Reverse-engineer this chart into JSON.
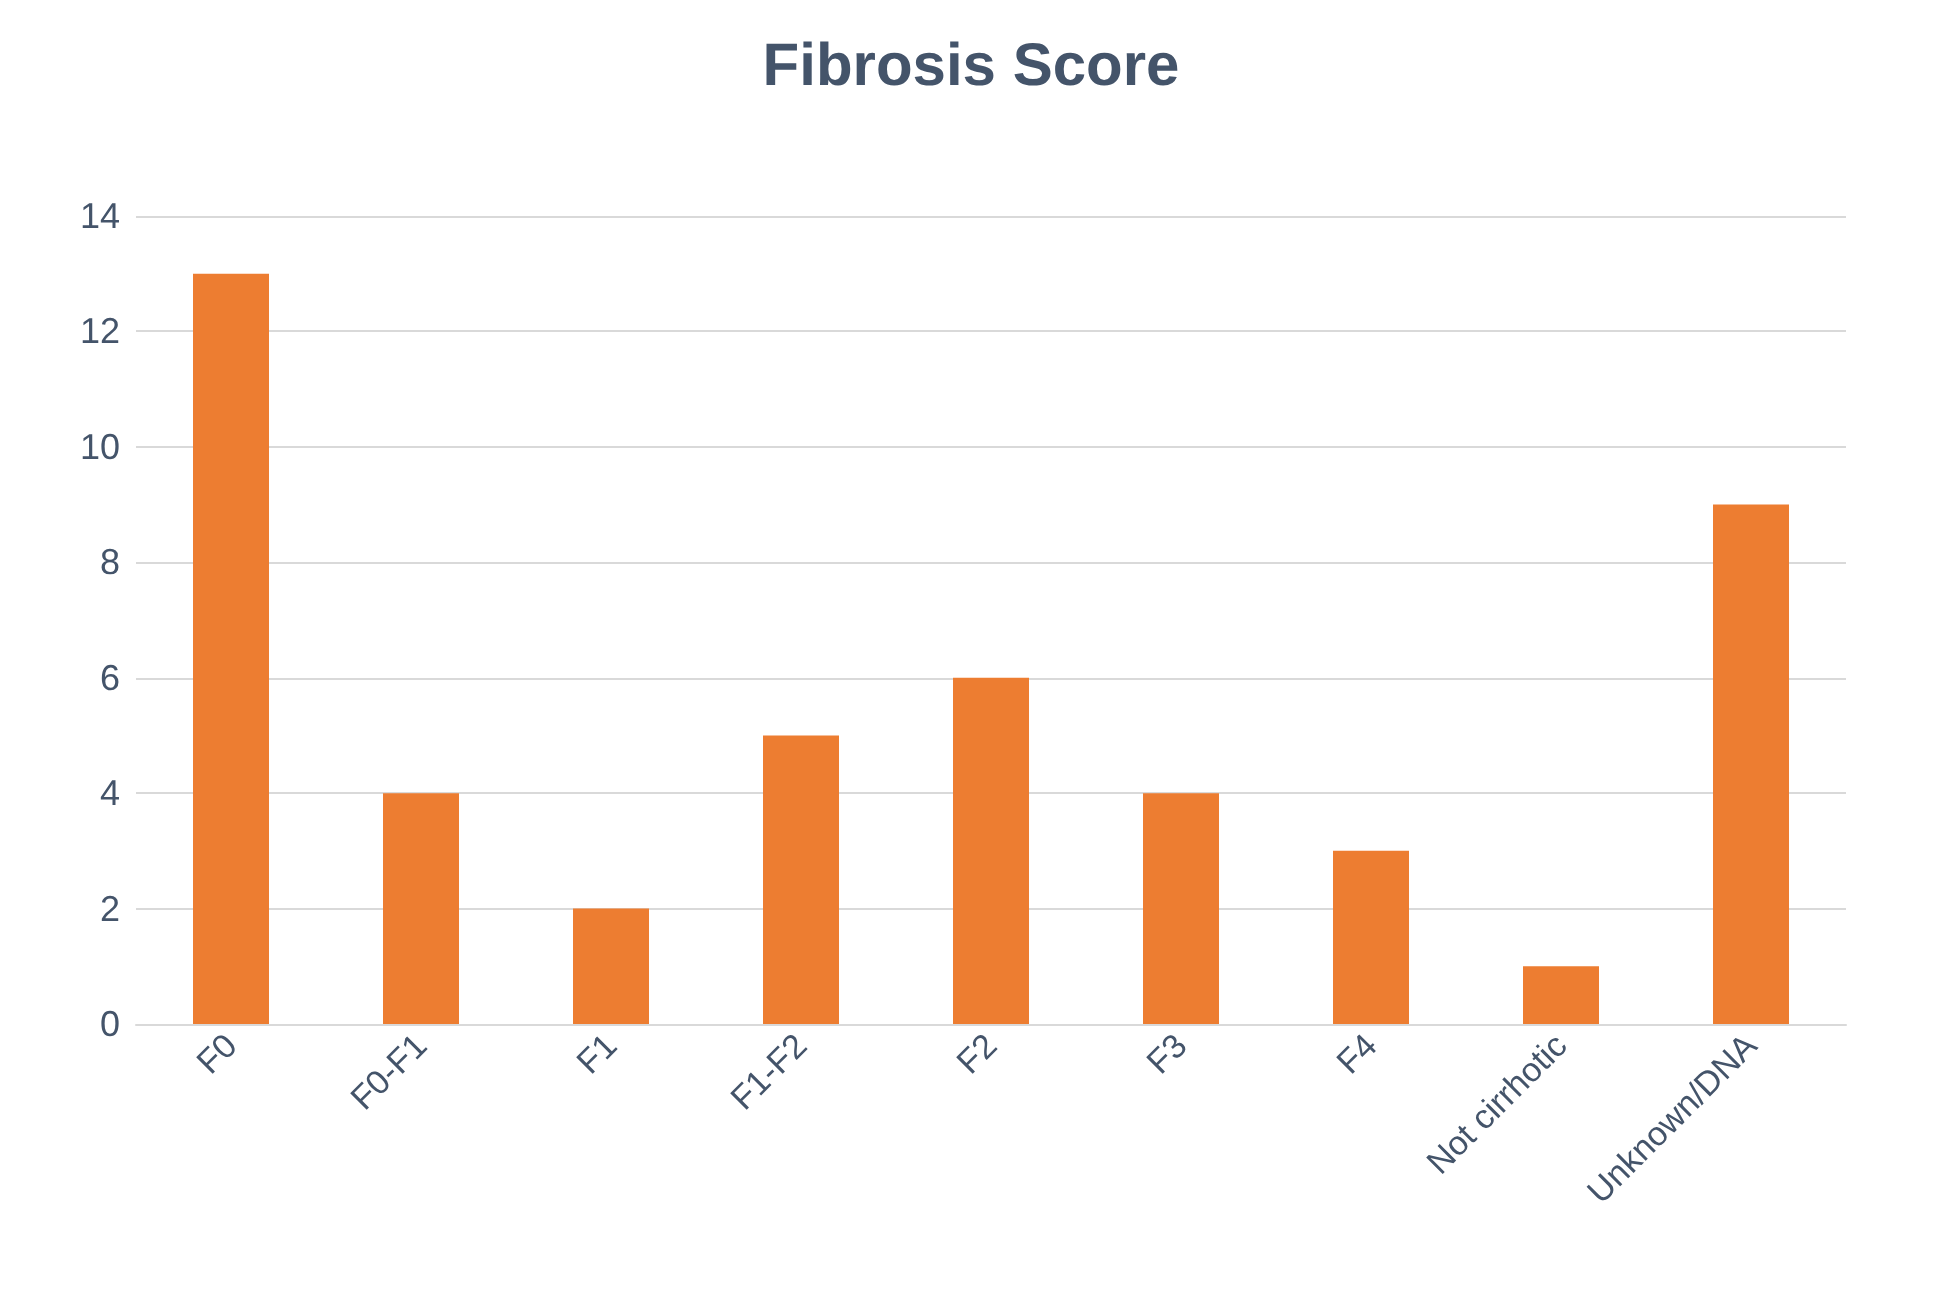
{
  "chart_data": {
    "type": "bar",
    "title": "Fibrosis Score",
    "categories": [
      "F0",
      "F0-F1",
      "F1",
      "F1-F2",
      "F2",
      "F3",
      "F4",
      "Not cirrhotic",
      "Unknown/DNA"
    ],
    "values": [
      13,
      4,
      2,
      5,
      6,
      4,
      3,
      1,
      9
    ],
    "color": "#ed7d31",
    "ylim": [
      0,
      14
    ],
    "yticks": [
      0,
      2,
      4,
      6,
      8,
      10,
      12,
      14
    ],
    "grid": "y"
  }
}
